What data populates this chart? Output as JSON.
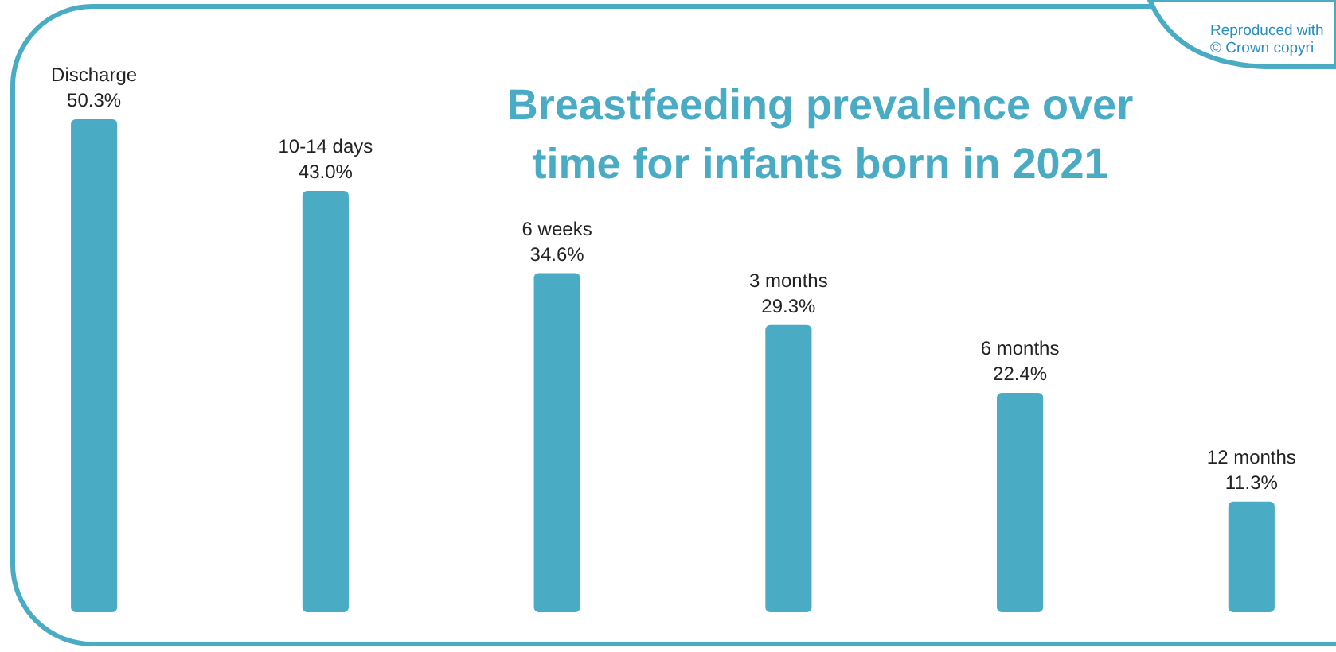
{
  "chart_data": {
    "type": "bar",
    "title": "Breastfeeding prevalence over time for infants born in 2021",
    "categories": [
      "Discharge",
      "10-14 days",
      "6 weeks",
      "3 months",
      "6 months",
      "12 months"
    ],
    "values": [
      50.3,
      43.0,
      34.6,
      29.3,
      22.4,
      11.3
    ],
    "value_labels": [
      "50.3%",
      "43.0%",
      "34.6%",
      "29.3%",
      "22.4%",
      "11.3%"
    ],
    "color": "#4aabc4",
    "annotations": [
      "Reproduced with",
      "© Crown copyri"
    ]
  }
}
